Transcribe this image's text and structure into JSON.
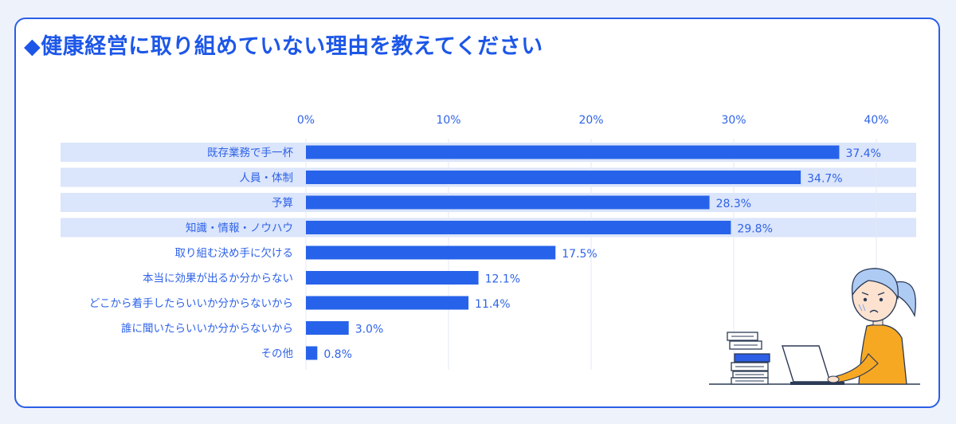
{
  "title": "◆健康経営に取り組めていない理由を教えてください",
  "colors": {
    "accent": "#2c5fe6",
    "bar": "#2763ea",
    "highlight_row": "#dbe5fb",
    "grid": "#e3e9f6",
    "text": "#2f63e8"
  },
  "chart_data": {
    "type": "bar",
    "orientation": "horizontal",
    "title": "◆健康経営に取り組めていない理由を教えてください",
    "xlabel": "",
    "ylabel": "",
    "xlim": [
      0,
      40
    ],
    "x_ticks": [
      "0%",
      "10%",
      "20%",
      "30%",
      "40%"
    ],
    "grid": true,
    "categories": [
      "既存業務で手一杯",
      "人員・体制",
      "予算",
      "知識・情報・ノウハウ",
      "取り組む決め手に欠ける",
      "本当に効果が出るか分からない",
      "どこから着手したらいいか分からないから",
      "誰に聞いたらいいか分からないから",
      "その他"
    ],
    "values": [
      37.4,
      34.7,
      28.3,
      29.8,
      17.5,
      12.1,
      11.4,
      3.0,
      0.8
    ],
    "value_labels": [
      "37.4%",
      "34.7%",
      "28.3%",
      "29.8%",
      "17.5%",
      "12.1%",
      "11.4%",
      "3.0%",
      "0.8%"
    ],
    "highlighted": [
      true,
      true,
      true,
      true,
      false,
      false,
      false,
      false,
      false
    ]
  }
}
